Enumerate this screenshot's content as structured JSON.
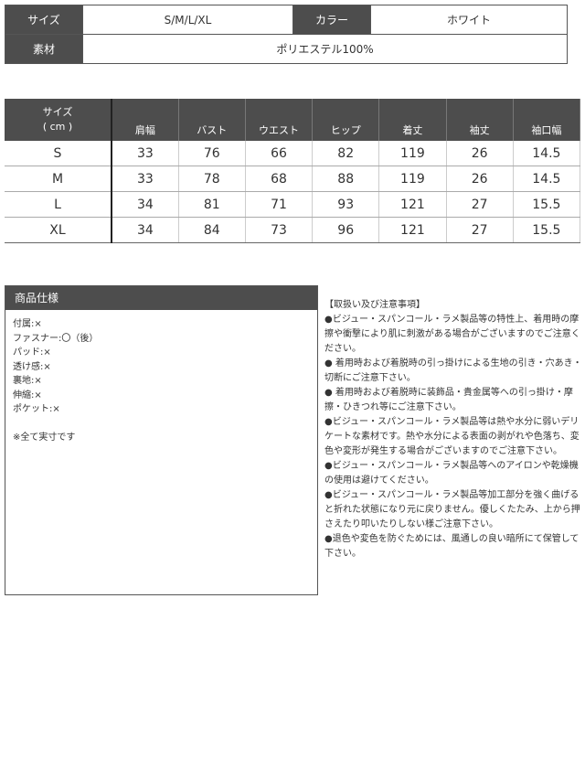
{
  "info": {
    "size_label": "サイズ",
    "size_value": "S/M/L/XL",
    "color_label": "カラー",
    "color_value": "ホワイト",
    "material_label": "素材",
    "material_value": "ポリエステル100%"
  },
  "size_table": {
    "header_size_line1": "サイズ",
    "header_size_line2": "( cm )",
    "columns": [
      "肩幅",
      "バスト",
      "ウエスト",
      "ヒップ",
      "着丈",
      "袖丈",
      "袖口幅"
    ],
    "rows": [
      {
        "size": "S",
        "values": [
          "33",
          "76",
          "66",
          "82",
          "119",
          "26",
          "14.5"
        ]
      },
      {
        "size": "M",
        "values": [
          "33",
          "78",
          "68",
          "88",
          "119",
          "26",
          "14.5"
        ]
      },
      {
        "size": "L",
        "values": [
          "34",
          "81",
          "71",
          "93",
          "121",
          "27",
          "15.5"
        ]
      },
      {
        "size": "XL",
        "values": [
          "34",
          "84",
          "73",
          "96",
          "121",
          "27",
          "15.5"
        ]
      }
    ]
  },
  "spec": {
    "title": "商品仕様",
    "items": [
      "付属:×",
      "ファスナー:〇（後）",
      "パッド:×",
      "透け感:×",
      "裏地:×",
      "伸縮:×",
      "ポケット:×"
    ],
    "note": "※全て実寸です"
  },
  "notes": {
    "title": "【取扱い及び注意事項】",
    "items": [
      "●ビジュー・スパンコール・ラメ製品等の特性上、着用時の摩擦や衝撃により肌に刺激がある場合がございますのでご注意ください。",
      "● 着用時および着脱時の引っ掛けによる生地の引き・穴あき・切断にご注意下さい。",
      "● 着用時および着脱時に装飾品・貴金属等への引っ掛け・摩擦・ひきつれ等にご注意下さい。",
      "●ビジュー・スパンコール・ラメ製品等は熱や水分に弱いデリケートな素材です。熱や水分による表面の剥がれや色落ち、変色や変形が発生する場合がございますのでご注意下さい。",
      "●ビジュー・スパンコール・ラメ製品等へのアイロンや乾燥機の使用は避けてください。",
      "●ビジュー・スパンコール・ラメ製品等加工部分を強く曲げると折れた状態になり元に戻りません。優しくたたみ、上から押さえたり叩いたりしない様ご注意下さい。",
      "●退色や変色を防ぐためには、風通しの良い暗所にて保管して下さい。"
    ]
  }
}
